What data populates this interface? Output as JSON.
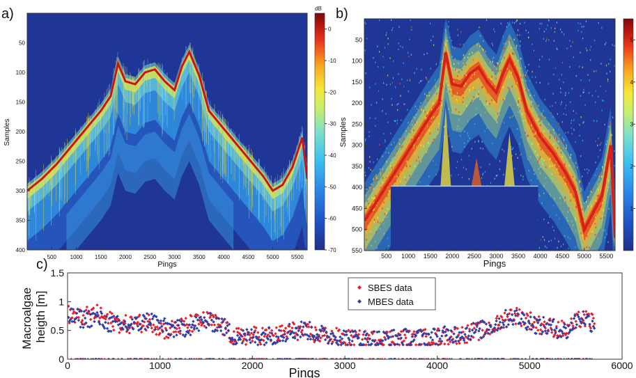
{
  "panel_labels": {
    "a": "a)",
    "b": "b)",
    "c": "c)"
  },
  "colors": {
    "background_blue": "#1f3696",
    "colormap": [
      "#1f2f8a",
      "#1f52c4",
      "#2a86e6",
      "#3bc0f2",
      "#7ee0c8",
      "#c8f06a",
      "#f5e83a",
      "#f9a51f",
      "#ea3a1c",
      "#b5150f",
      "#7a0b0a"
    ],
    "sbes": "#e8202a",
    "mbes": "#2f3fa5"
  },
  "chart_data": [
    {
      "type": "heatmap",
      "panel": "a)",
      "xlabel": "Pings",
      "ylabel": "Samples",
      "xlim": [
        0,
        5700
      ],
      "ylim": [
        400,
        0
      ],
      "xticks": [
        500,
        1000,
        1500,
        2000,
        2500,
        3000,
        3500,
        4000,
        4500,
        5000,
        5500
      ],
      "yticks": [
        50,
        100,
        150,
        200,
        250,
        300,
        350,
        400
      ],
      "colorbar": {
        "unit": "dB",
        "range": [
          -70,
          5
        ],
        "ticks": [
          0,
          -10,
          -20,
          -30,
          -40,
          -50,
          -60,
          -70
        ],
        "tick_labels": [
          "0",
          "-10",
          "-20",
          "-30",
          "-40",
          "-50",
          "-60",
          "-70"
        ]
      },
      "seafloor_trace": {
        "x": [
          0,
          300,
          600,
          900,
          1200,
          1500,
          1700,
          1850,
          2000,
          2200,
          2400,
          2600,
          2800,
          3000,
          3150,
          3300,
          3500,
          3700,
          4000,
          4300,
          4600,
          4800,
          5000,
          5200,
          5400,
          5600,
          5700
        ],
        "y": [
          300,
          280,
          255,
          225,
          195,
          165,
          140,
          85,
          115,
          120,
          100,
          95,
          115,
          130,
          90,
          65,
          105,
          165,
          195,
          225,
          255,
          275,
          300,
          290,
          260,
          210,
          280
        ]
      }
    },
    {
      "type": "heatmap",
      "panel": "b)",
      "xlabel": "Pings",
      "ylabel": "Samples",
      "xlim": [
        0,
        5700
      ],
      "ylim": [
        550,
        0
      ],
      "xticks": [
        500,
        1000,
        1500,
        2000,
        2500,
        3000,
        3500,
        4000,
        4500,
        5000,
        5500
      ],
      "yticks": [
        50,
        100,
        150,
        200,
        250,
        300,
        350,
        400,
        450,
        500,
        550
      ],
      "colorbar": {
        "range": [
          0,
          5.5
        ],
        "ticks": [
          1,
          2,
          3,
          4,
          5
        ],
        "tick_labels": [
          "1",
          "2",
          "3",
          "4",
          "5"
        ]
      },
      "masked_region": {
        "x": [
          600,
          3950
        ],
        "y": [
          397,
          550
        ]
      },
      "seafloor_trace": {
        "x": [
          0,
          300,
          600,
          900,
          1200,
          1500,
          1700,
          1850,
          2000,
          2200,
          2400,
          2600,
          2800,
          3000,
          3150,
          3300,
          3500,
          3700,
          4000,
          4300,
          4600,
          4800,
          5000,
          5200,
          5400,
          5600,
          5700
        ],
        "y": [
          480,
          430,
          380,
          330,
          280,
          230,
          200,
          80,
          155,
          160,
          130,
          115,
          150,
          175,
          130,
          95,
          140,
          220,
          280,
          320,
          370,
          410,
          500,
          460,
          420,
          300,
          520
        ]
      }
    },
    {
      "type": "scatter",
      "panel": "c)",
      "xlabel": "Pings",
      "ylabel": "Macroalgae heigth [m]",
      "xlim": [
        0,
        6000
      ],
      "ylim": [
        0,
        1.5
      ],
      "xticks": [
        0,
        1000,
        2000,
        3000,
        4000,
        5000,
        6000
      ],
      "yticks": [
        0,
        0.5,
        1,
        1.5
      ],
      "ytick_labels": [
        "0",
        "0.5",
        "1",
        "1.5"
      ],
      "legend": "top-center",
      "series": [
        {
          "name": "SBES data",
          "trend_x": [
            0,
            150,
            300,
            450,
            600,
            750,
            900,
            1050,
            1200,
            1350,
            1500,
            1650,
            1800,
            1950,
            2100,
            2250,
            2400,
            2550,
            2700,
            2850,
            3000,
            3150,
            3300,
            3450,
            3600,
            3750,
            3900,
            4050,
            4200,
            4350,
            4500,
            4650,
            4800,
            4950,
            5100,
            5250,
            5400,
            5550,
            5700
          ],
          "trend_y": [
            0.78,
            0.72,
            0.8,
            0.68,
            0.6,
            0.62,
            0.65,
            0.5,
            0.55,
            0.62,
            0.68,
            0.6,
            0.38,
            0.4,
            0.42,
            0.4,
            0.5,
            0.48,
            0.42,
            0.4,
            0.36,
            0.34,
            0.34,
            0.36,
            0.36,
            0.35,
            0.37,
            0.4,
            0.42,
            0.45,
            0.5,
            0.6,
            0.78,
            0.72,
            0.6,
            0.55,
            0.5,
            0.7,
            0.65
          ]
        },
        {
          "name": "MBES data",
          "trend_x": [
            0,
            150,
            300,
            450,
            600,
            750,
            900,
            1050,
            1200,
            1350,
            1500,
            1650,
            1800,
            1950,
            2100,
            2250,
            2400,
            2550,
            2700,
            2850,
            3000,
            3150,
            3300,
            3450,
            3600,
            3750,
            3900,
            4050,
            4200,
            4350,
            4500,
            4650,
            4800,
            4950,
            5100,
            5250,
            5400,
            5550,
            5700
          ],
          "trend_y": [
            0.75,
            0.7,
            0.72,
            0.62,
            0.58,
            0.6,
            0.7,
            0.55,
            0.52,
            0.58,
            0.65,
            0.62,
            0.4,
            0.38,
            0.4,
            0.42,
            0.48,
            0.52,
            0.45,
            0.4,
            0.38,
            0.34,
            0.35,
            0.35,
            0.38,
            0.36,
            0.38,
            0.4,
            0.45,
            0.48,
            0.52,
            0.62,
            0.75,
            0.68,
            0.58,
            0.55,
            0.48,
            0.75,
            0.6
          ]
        }
      ]
    }
  ]
}
